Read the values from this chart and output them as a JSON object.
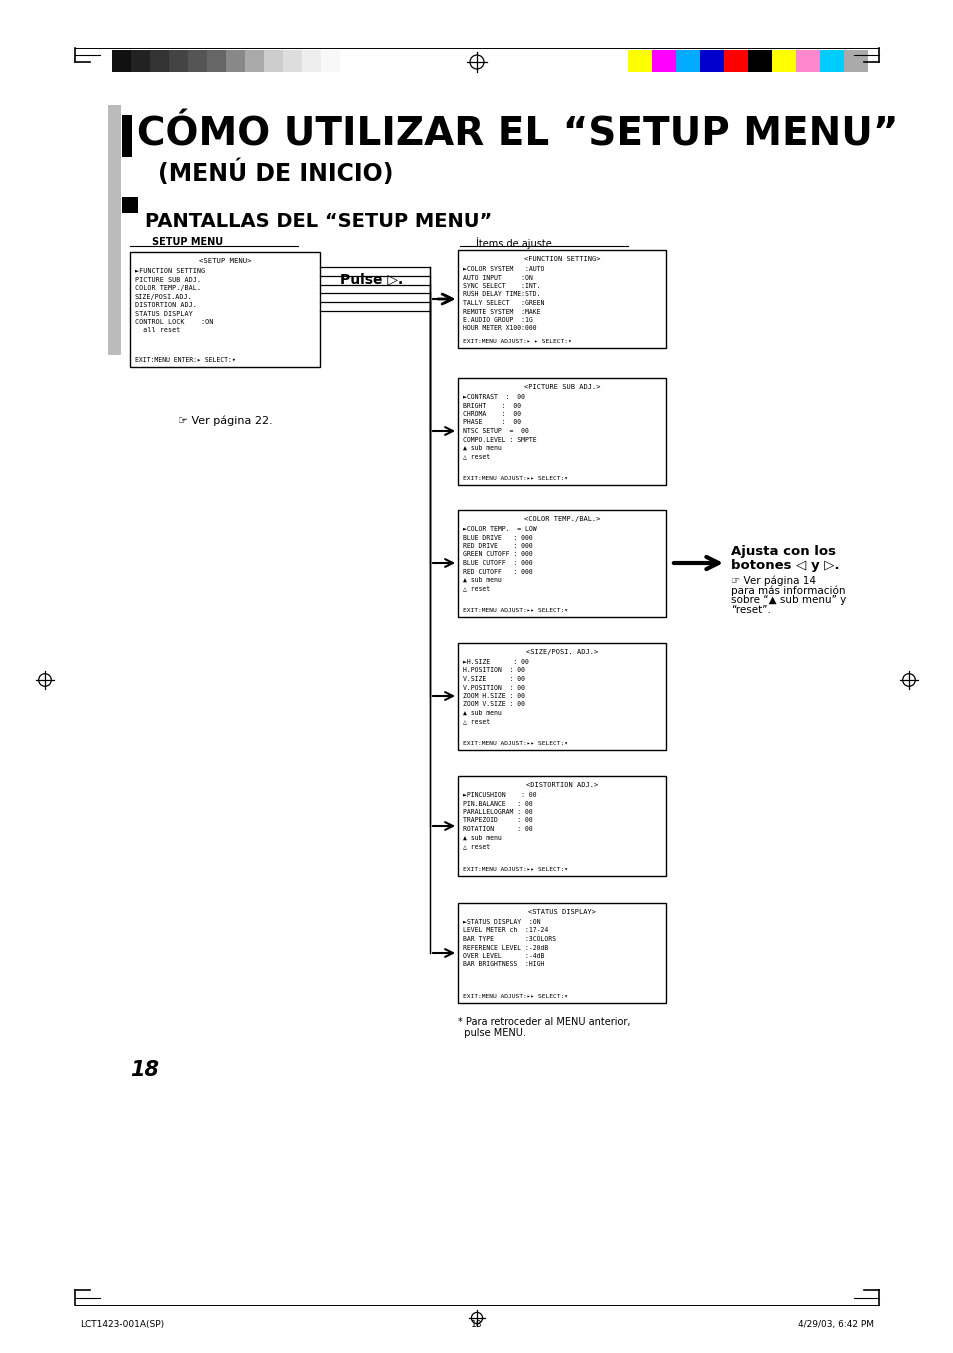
{
  "bg_color": "#ffffff",
  "page_title_line1": "CÓMO UTILIZAR EL “SETUP MENU”",
  "page_title_line2": "(MENÚ DE INICIO)",
  "section_title": "PANTALLAS DEL “SETUP MENU”",
  "label_setup_menu": "SETUP MENU",
  "label_items": "Ítems de ajuste",
  "pulse_label": "Pulse ▷.",
  "ver_pagina": "☞ Ver página 22.",
  "ajusta_line1": "Ajusta con los",
  "ajusta_line2": "botones ◁ y ▷.",
  "ver_pagina14_line1": "☞ Ver página 14",
  "ver_pagina14_line2": "para más información",
  "ver_pagina14_line3": "sobre “▲ sub menu” y",
  "ver_pagina14_line4": "“reset”.",
  "nota_bottom": "* Para retroceder al MENU anterior,",
  "nota_bottom2": "  pulse MENU.",
  "page_number": "18",
  "footer_left": "LCT1423-001A(SP)",
  "footer_center": "18",
  "footer_right": "4/29/03, 6:42 PM",
  "grayscale_colors": [
    "#111111",
    "#222222",
    "#333333",
    "#444444",
    "#555555",
    "#666666",
    "#888888",
    "#aaaaaa",
    "#cccccc",
    "#dddddd",
    "#eeeeee",
    "#f8f8f8"
  ],
  "color_bars_right": [
    "#ffff00",
    "#ff00ff",
    "#00aaff",
    "#0000cc",
    "#ff0000",
    "#000000",
    "#ffff00",
    "#ff88cc",
    "#00ccff",
    "#aaaaaa"
  ],
  "setup_menu_title": "<SETUP MENU>",
  "setup_menu_lines": [
    "►FUNCTION SETTING",
    "PICTURE SUB ADJ.",
    "COLOR TEMP./BAL.",
    "SIZE/POSI.ADJ.",
    "DISTORTION ADJ.",
    "STATUS DISPLAY",
    "CONTROL LOCK    :ON",
    "  all reset"
  ],
  "setup_menu_footer": "EXIT:MENU ENTER:▸ SELECT:▾",
  "function_title": "<FUNCTION SETTING>",
  "function_lines": [
    "►COLOR SYSTEM   :AUTO",
    "AUTO INPUT     :ON",
    "SYNC SELECT    :INT.",
    "RUSH DELAY TIME:STD.",
    "TALLY SELECT   :GREEN",
    "REMOTE SYSTEM  :MAKE",
    "E.AUDIO GROUP  :1G",
    "HOUR METER X100:000"
  ],
  "function_footer": "EXIT:MENU ADJUST:▸ ▸ SELECT:▾",
  "picture_title": "<PICTURE SUB ADJ.>",
  "picture_lines": [
    "►CONTRAST  :  00",
    "BRIGHT    :  00",
    "CHROMA    :  00",
    "PHASE     :  00",
    "NTSC SETUP  =  00",
    "COMPO.LEVEL : SMPTE",
    "▲ sub menu",
    "△ reset"
  ],
  "picture_footer": "EXIT:MENU ADJUST:▸▸ SELECT:▾",
  "color_title": "<COLOR TEMP./BAL.>",
  "color_lines": [
    "►COLOR TEMP.  = LOW",
    "BLUE DRIVE   : 000",
    "RED DRIVE    : 000",
    "GREEN CUTOFF : 000",
    "BLUE CUTOFF  : 000",
    "RED CUTOFF   : 000",
    "▲ sub menu",
    "△ reset"
  ],
  "color_footer": "EXIT:MENU ADJUST:▸▸ SELECT:▾",
  "size_title": "<SIZE/POSI. ADJ.>",
  "size_lines": [
    "►H.SIZE      : 00",
    "H.POSITION  : 00",
    "V.SIZE      : 00",
    "V.POSITION  : 00",
    "ZOOM H.SIZE : 00",
    "ZOOM V.SIZE : 00",
    "▲ sub menu",
    "△ reset"
  ],
  "size_footer": "EXIT:MENU ADJUST:▸▸ SELECT:▾",
  "dist_title": "<DISTORTION ADJ.>",
  "dist_lines": [
    "►PINCUSHION    : 00",
    "PIN.BALANCE   : 00",
    "PARALLELOGRAM : 00",
    "TRAPEZOID     : 00",
    "ROTATION      : 00",
    "▲ sub menu",
    "△ reset"
  ],
  "dist_footer": "EXIT:MENU ADJUST:▸▸ SELECT:▾",
  "status_title": "<STATUS DISPLAY>",
  "status_lines": [
    "►STATUS DISPLAY  :ON",
    "LEVEL METER ch  :17-24",
    "BAR TYPE        :3COLORS",
    "REFERENCE LEVEL :-20dB",
    "OVER LEVEL      :-4dB",
    "BAR BRIGHTNESS  :HIGH"
  ],
  "status_footer": "EXIT:MENU ADJUST:▸▸ SELECT:▾"
}
